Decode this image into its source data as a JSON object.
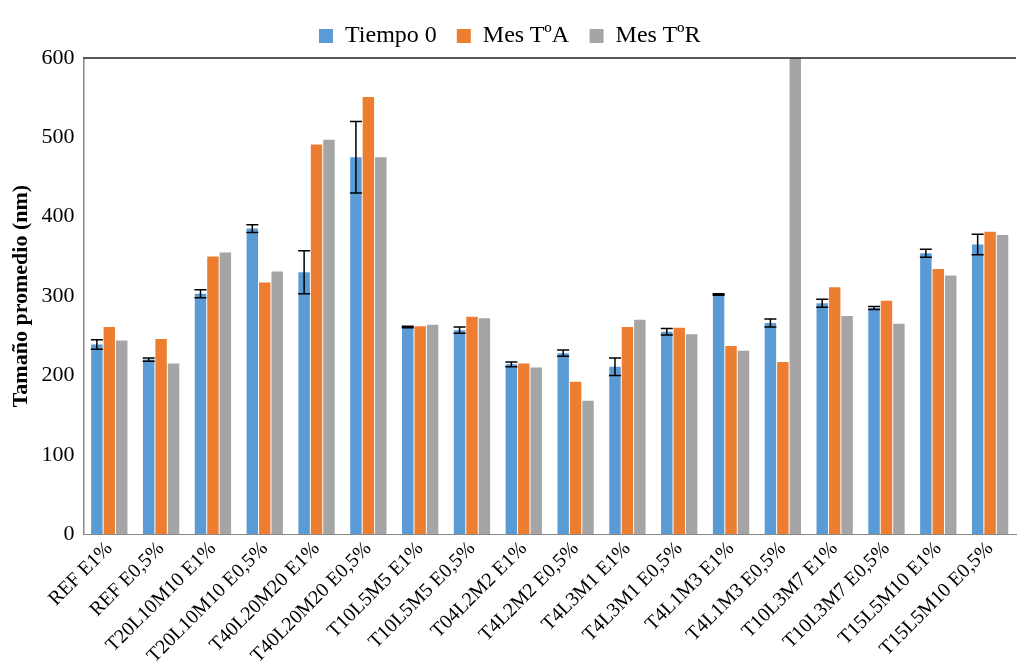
{
  "chart_data": {
    "type": "bar",
    "ylabel": "Tamaño promedio (nm)",
    "categories": [
      "REF E1%",
      "REF E0,5%",
      "T20L10M10 E1%",
      "T20L10M10 E0,5%",
      "T40L20M20 E1%",
      "T40L20M20 E0,5%",
      "T10L5M5 E1%",
      "T10L5M5 E0,5%",
      "T04L2M2 E1%",
      "T4L2M2 E0,5%",
      "T4L3M1 E1%",
      "T4L3M1 E0,5%",
      "T4L1M3 E1%",
      "T4L1M3 E0,5%",
      "T10L3M7 E1%",
      "T10L3M7 E0,5%",
      "T15L5M10 E1%",
      "T15L5M10 E0,5%"
    ],
    "series": [
      {
        "name": "Tiempo 0",
        "color": "#5b9bd5",
        "values": [
          239,
          220,
          303,
          385,
          330,
          475,
          261,
          257,
          214,
          228,
          211,
          255,
          302,
          266,
          291,
          285,
          354,
          365
        ],
        "errors": [
          6,
          2,
          5,
          5,
          27,
          45,
          1,
          4,
          3,
          4,
          11,
          4,
          1,
          5,
          5,
          2,
          5,
          13
        ]
      },
      {
        "name": "Mes TºA",
        "color": "#ed7d31",
        "values": [
          261,
          246,
          350,
          317,
          491,
          551,
          262,
          274,
          215,
          192,
          261,
          260,
          237,
          217,
          311,
          294,
          334,
          381
        ]
      },
      {
        "name": "Mes TºR",
        "color": "#a5a5a5",
        "values": [
          244,
          215,
          355,
          331,
          497,
          475,
          264,
          272,
          210,
          168,
          270,
          252,
          231,
          600,
          275,
          265,
          326,
          377
        ]
      }
    ],
    "ylim": [
      0,
      600
    ],
    "yticks": [
      0,
      100,
      200,
      300,
      400,
      500,
      600
    ],
    "grid": false,
    "legend": "top"
  }
}
